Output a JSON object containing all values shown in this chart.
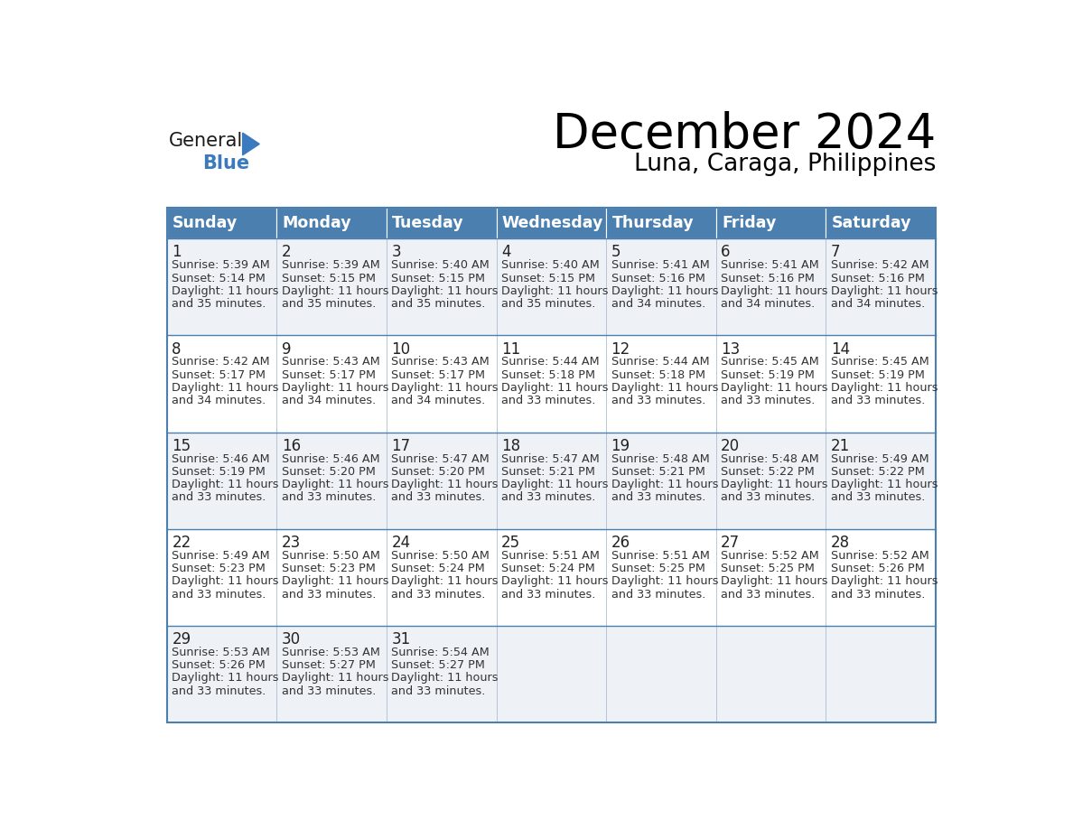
{
  "title": "December 2024",
  "subtitle": "Luna, Caraga, Philippines",
  "days_of_week": [
    "Sunday",
    "Monday",
    "Tuesday",
    "Wednesday",
    "Thursday",
    "Friday",
    "Saturday"
  ],
  "header_bg": "#4a7faf",
  "header_text": "#ffffff",
  "row_bg_odd": "#eef2f7",
  "row_bg_even": "#ffffff",
  "border_color": "#4a7faf",
  "cell_border_color": "#aabbd0",
  "day_number_color": "#222222",
  "text_color": "#333333",
  "logo_color_general": "#1a1a1a",
  "logo_color_blue": "#3a7abf",
  "title_fontsize": 38,
  "subtitle_fontsize": 19,
  "header_fontsize": 12.5,
  "day_num_fontsize": 12,
  "cell_fontsize": 9.2,
  "calendar_data": [
    {
      "day": 1,
      "sunrise": "5:39 AM",
      "sunset": "5:14 PM",
      "daylight_min": "35"
    },
    {
      "day": 2,
      "sunrise": "5:39 AM",
      "sunset": "5:15 PM",
      "daylight_min": "35"
    },
    {
      "day": 3,
      "sunrise": "5:40 AM",
      "sunset": "5:15 PM",
      "daylight_min": "35"
    },
    {
      "day": 4,
      "sunrise": "5:40 AM",
      "sunset": "5:15 PM",
      "daylight_min": "35"
    },
    {
      "day": 5,
      "sunrise": "5:41 AM",
      "sunset": "5:16 PM",
      "daylight_min": "34"
    },
    {
      "day": 6,
      "sunrise": "5:41 AM",
      "sunset": "5:16 PM",
      "daylight_min": "34"
    },
    {
      "day": 7,
      "sunrise": "5:42 AM",
      "sunset": "5:16 PM",
      "daylight_min": "34"
    },
    {
      "day": 8,
      "sunrise": "5:42 AM",
      "sunset": "5:17 PM",
      "daylight_min": "34"
    },
    {
      "day": 9,
      "sunrise": "5:43 AM",
      "sunset": "5:17 PM",
      "daylight_min": "34"
    },
    {
      "day": 10,
      "sunrise": "5:43 AM",
      "sunset": "5:17 PM",
      "daylight_min": "34"
    },
    {
      "day": 11,
      "sunrise": "5:44 AM",
      "sunset": "5:18 PM",
      "daylight_min": "33"
    },
    {
      "day": 12,
      "sunrise": "5:44 AM",
      "sunset": "5:18 PM",
      "daylight_min": "33"
    },
    {
      "day": 13,
      "sunrise": "5:45 AM",
      "sunset": "5:19 PM",
      "daylight_min": "33"
    },
    {
      "day": 14,
      "sunrise": "5:45 AM",
      "sunset": "5:19 PM",
      "daylight_min": "33"
    },
    {
      "day": 15,
      "sunrise": "5:46 AM",
      "sunset": "5:19 PM",
      "daylight_min": "33"
    },
    {
      "day": 16,
      "sunrise": "5:46 AM",
      "sunset": "5:20 PM",
      "daylight_min": "33"
    },
    {
      "day": 17,
      "sunrise": "5:47 AM",
      "sunset": "5:20 PM",
      "daylight_min": "33"
    },
    {
      "day": 18,
      "sunrise": "5:47 AM",
      "sunset": "5:21 PM",
      "daylight_min": "33"
    },
    {
      "day": 19,
      "sunrise": "5:48 AM",
      "sunset": "5:21 PM",
      "daylight_min": "33"
    },
    {
      "day": 20,
      "sunrise": "5:48 AM",
      "sunset": "5:22 PM",
      "daylight_min": "33"
    },
    {
      "day": 21,
      "sunrise": "5:49 AM",
      "sunset": "5:22 PM",
      "daylight_min": "33"
    },
    {
      "day": 22,
      "sunrise": "5:49 AM",
      "sunset": "5:23 PM",
      "daylight_min": "33"
    },
    {
      "day": 23,
      "sunrise": "5:50 AM",
      "sunset": "5:23 PM",
      "daylight_min": "33"
    },
    {
      "day": 24,
      "sunrise": "5:50 AM",
      "sunset": "5:24 PM",
      "daylight_min": "33"
    },
    {
      "day": 25,
      "sunrise": "5:51 AM",
      "sunset": "5:24 PM",
      "daylight_min": "33"
    },
    {
      "day": 26,
      "sunrise": "5:51 AM",
      "sunset": "5:25 PM",
      "daylight_min": "33"
    },
    {
      "day": 27,
      "sunrise": "5:52 AM",
      "sunset": "5:25 PM",
      "daylight_min": "33"
    },
    {
      "day": 28,
      "sunrise": "5:52 AM",
      "sunset": "5:26 PM",
      "daylight_min": "33"
    },
    {
      "day": 29,
      "sunrise": "5:53 AM",
      "sunset": "5:26 PM",
      "daylight_min": "33"
    },
    {
      "day": 30,
      "sunrise": "5:53 AM",
      "sunset": "5:27 PM",
      "daylight_min": "33"
    },
    {
      "day": 31,
      "sunrise": "5:54 AM",
      "sunset": "5:27 PM",
      "daylight_min": "33"
    }
  ]
}
